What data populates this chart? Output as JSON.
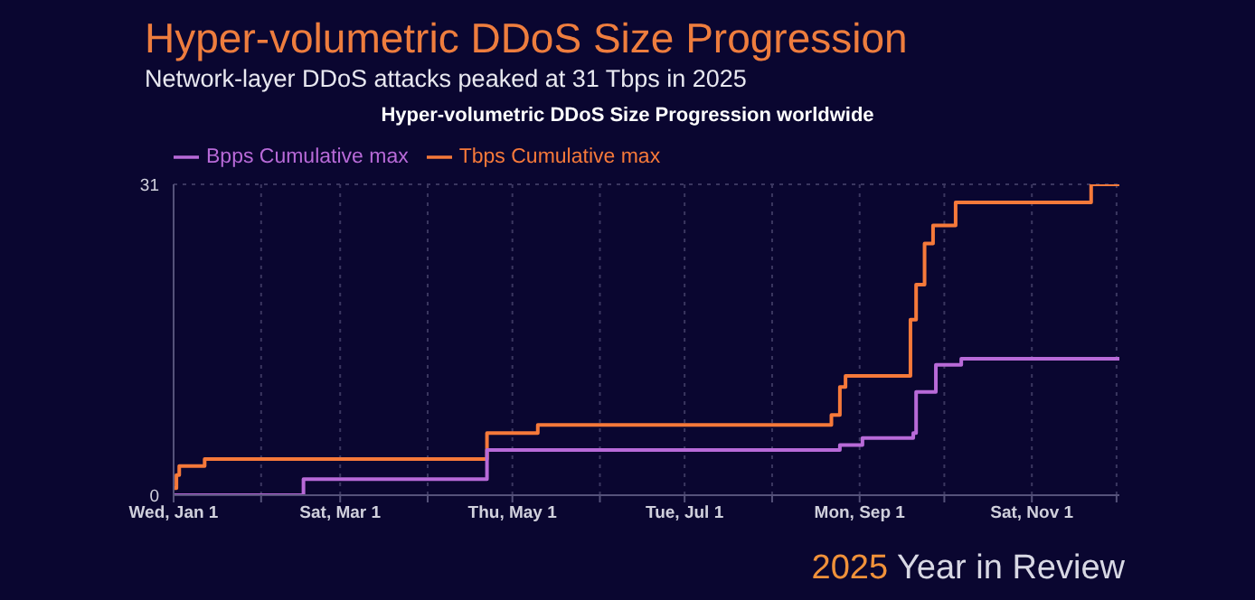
{
  "chart_data": {
    "type": "step",
    "title": "Hyper-volumetric DDoS Size Progression",
    "subtitle": "Network-layer DDoS attacks peaked at 31 Tbps in 2025",
    "annotations": [
      "Hyper-volumetric DDoS Size Progression worldwide",
      "2025 Year in Review"
    ],
    "series": [
      {
        "name": "Tbps Cumulative max",
        "color": "#f6793a",
        "x": [
          "2025-01-01",
          "2025-01-02",
          "2025-01-03",
          "2025-01-12",
          "2025-04-22",
          "2025-05-10",
          "2025-08-22",
          "2025-08-25",
          "2025-08-27",
          "2025-09-19",
          "2025-09-21",
          "2025-09-24",
          "2025-09-27",
          "2025-10-05",
          "2025-11-22",
          "2025-12-02"
        ],
        "values": [
          0.7,
          2.0,
          2.9,
          3.6,
          6.2,
          7.0,
          8.0,
          10.8,
          11.9,
          17.5,
          21.0,
          25.1,
          26.9,
          29.2,
          31,
          31
        ]
      },
      {
        "name": "Bpps Cumulative max",
        "color": "#b86ad8",
        "x": [
          "2025-01-01",
          "2025-02-16",
          "2025-04-22",
          "2025-08-25",
          "2025-09-02",
          "2025-09-20",
          "2025-09-21",
          "2025-09-28",
          "2025-10-07",
          "2025-12-02"
        ],
        "values": [
          0,
          1.6,
          4.5,
          5.0,
          5.7,
          6.2,
          10.3,
          13.0,
          13.6,
          13.6
        ]
      }
    ],
    "xlim": [
      "2025-01-01",
      "2025-12-02"
    ],
    "xticks": [
      {
        "value": "2025-01-01",
        "label": "Wed, Jan 1"
      },
      {
        "value": "2025-02-01",
        "label": null
      },
      {
        "value": "2025-03-01",
        "label": "Sat, Mar 1"
      },
      {
        "value": "2025-04-01",
        "label": null
      },
      {
        "value": "2025-05-01",
        "label": "Thu, May 1"
      },
      {
        "value": "2025-06-01",
        "label": null
      },
      {
        "value": "2025-07-01",
        "label": "Tue, Jul 1"
      },
      {
        "value": "2025-08-01",
        "label": null
      },
      {
        "value": "2025-09-01",
        "label": "Mon, Sep 1"
      },
      {
        "value": "2025-10-01",
        "label": null
      },
      {
        "value": "2025-11-01",
        "label": "Sat, Nov 1"
      },
      {
        "value": "2025-12-01",
        "label": null
      }
    ],
    "ylim": [
      0,
      31
    ],
    "yticks": [
      0,
      31
    ],
    "grid": true,
    "legend": "top left",
    "marker": "none",
    "line_style": "solid"
  }
}
